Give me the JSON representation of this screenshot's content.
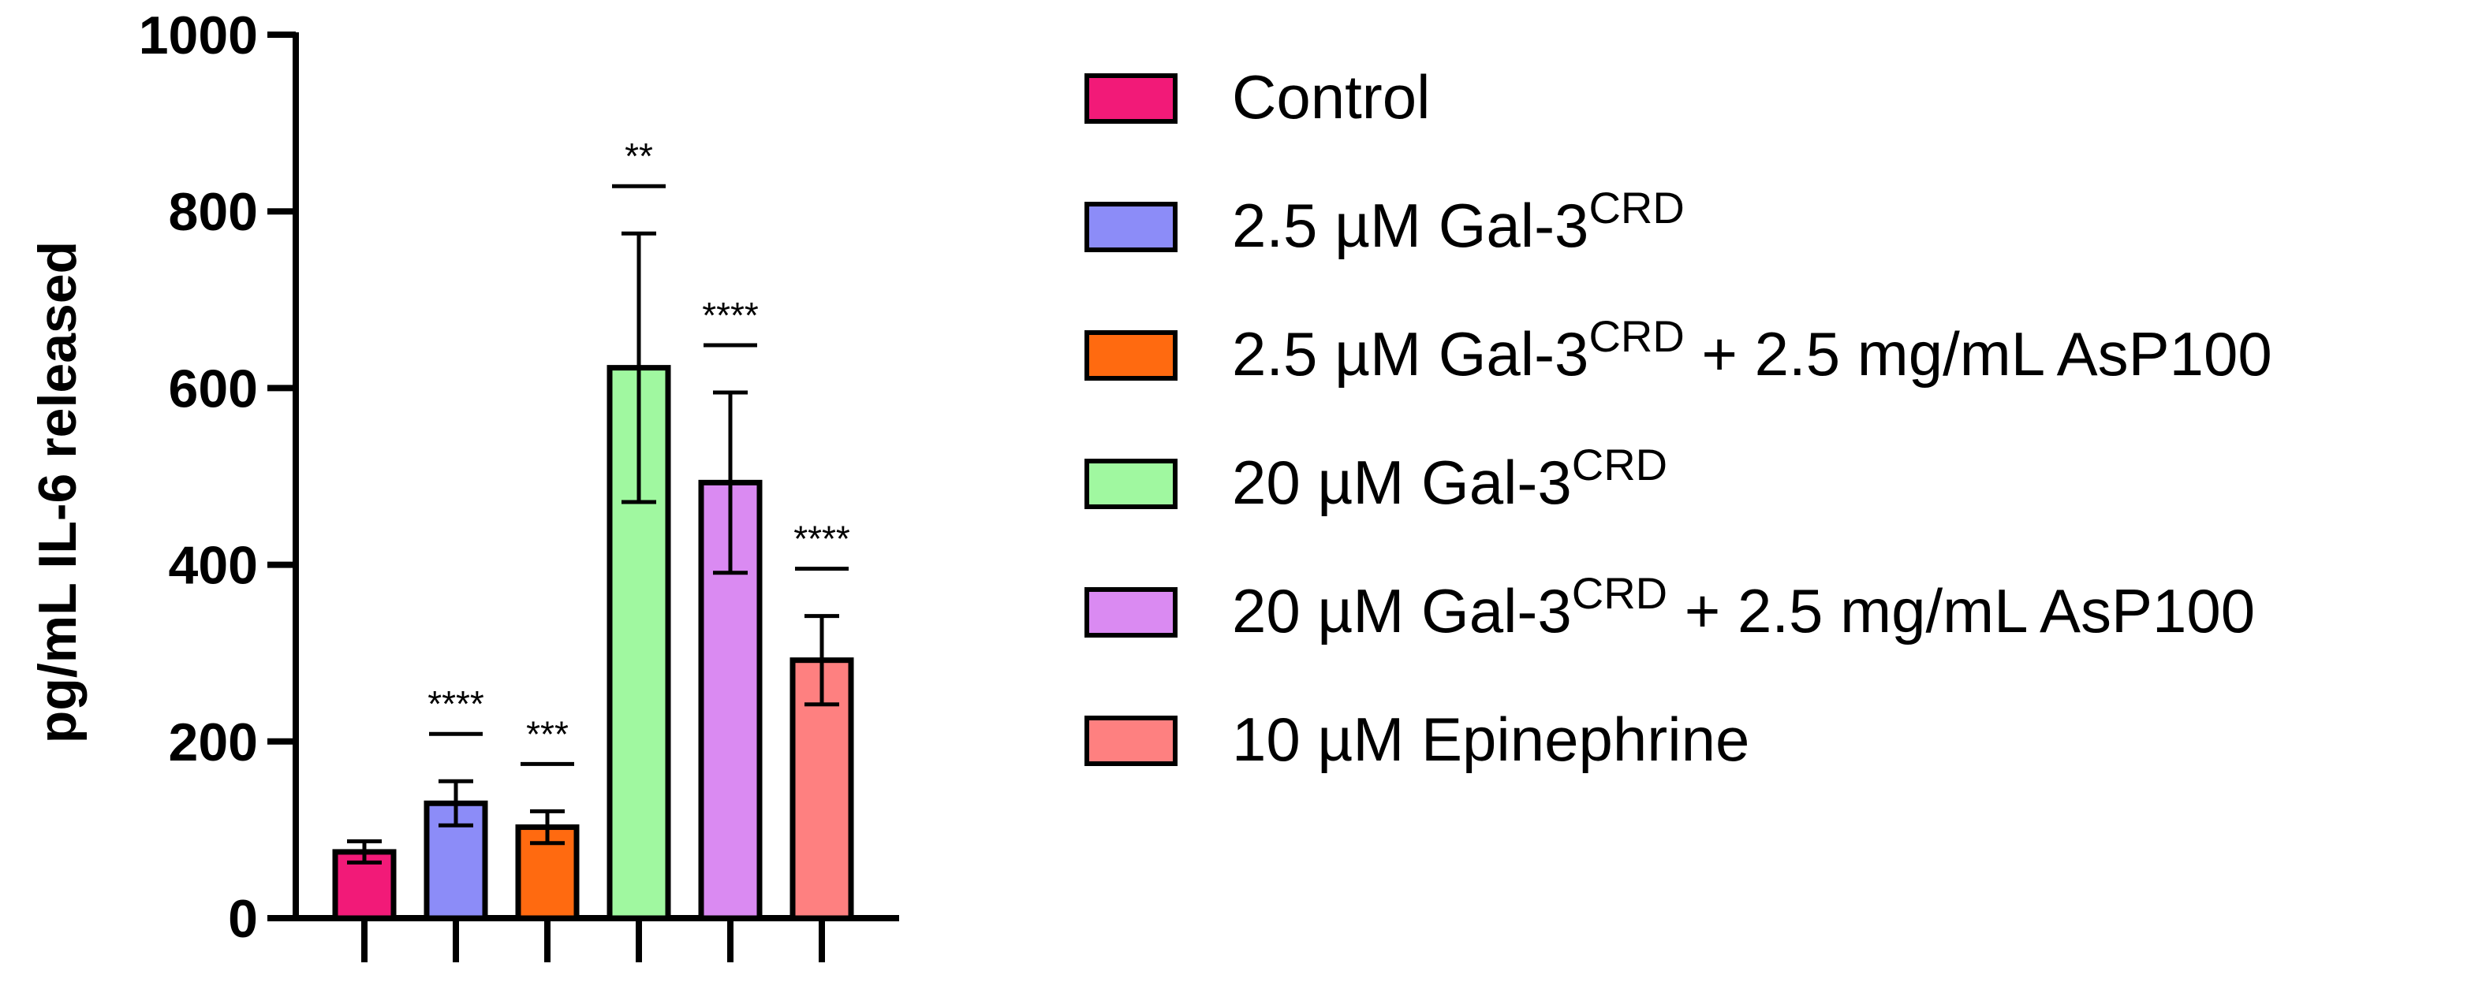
{
  "chart_data": {
    "type": "bar",
    "title": "",
    "xlabel": "",
    "ylabel": "pg/mL IL-6 released",
    "ylim": [
      0,
      1000
    ],
    "yticks": [
      0,
      200,
      400,
      600,
      800,
      1000
    ],
    "grid": false,
    "legend_position": "right",
    "categories": [
      {
        "label": "Control",
        "sup": "",
        "suffix": ""
      },
      {
        "label": "2.5 µM Gal-3",
        "sup": "CRD",
        "suffix": ""
      },
      {
        "label": "2.5 µM Gal-3",
        "sup": "CRD",
        "suffix": " + 2.5 mg/mL AsP100"
      },
      {
        "label": "20 µM Gal-3",
        "sup": "CRD",
        "suffix": ""
      },
      {
        "label": "20 µM Gal-3",
        "sup": "CRD",
        "suffix": " + 2.5 mg/mL AsP100"
      },
      {
        "label": "10 µM Epinephrine",
        "sup": "",
        "suffix": ""
      }
    ],
    "values": [
      75,
      130,
      103,
      623,
      493,
      292
    ],
    "error": [
      12,
      25,
      18,
      152,
      102,
      50
    ],
    "significance": [
      "",
      "****",
      "***",
      "**",
      "****",
      "****"
    ],
    "colors": [
      "#f21a78",
      "#8c8cf8",
      "#ff6a10",
      "#a0f8a0",
      "#da8af2",
      "#fe8080"
    ]
  }
}
